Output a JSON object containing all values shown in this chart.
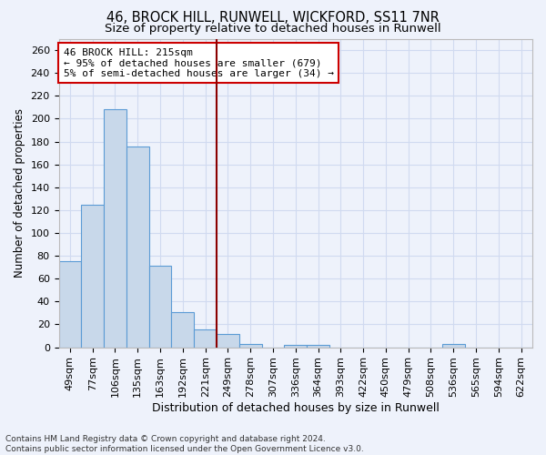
{
  "title1": "46, BROCK HILL, RUNWELL, WICKFORD, SS11 7NR",
  "title2": "Size of property relative to detached houses in Runwell",
  "xlabel": "Distribution of detached houses by size in Runwell",
  "ylabel": "Number of detached properties",
  "categories": [
    "49sqm",
    "77sqm",
    "106sqm",
    "135sqm",
    "163sqm",
    "192sqm",
    "221sqm",
    "249sqm",
    "278sqm",
    "307sqm",
    "336sqm",
    "364sqm",
    "393sqm",
    "422sqm",
    "450sqm",
    "479sqm",
    "508sqm",
    "536sqm",
    "565sqm",
    "594sqm",
    "622sqm"
  ],
  "values": [
    75,
    125,
    208,
    176,
    71,
    31,
    16,
    12,
    3,
    0,
    2,
    2,
    0,
    0,
    0,
    0,
    0,
    3,
    0,
    0,
    0
  ],
  "bar_color": "#c8d8ea",
  "bar_edge_color": "#5b9bd5",
  "vline_x_idx": 6,
  "vline_color": "#8b0000",
  "annotation_line1": "46 BROCK HILL: 215sqm",
  "annotation_line2": "← 95% of detached houses are smaller (679)",
  "annotation_line3": "5% of semi-detached houses are larger (34) →",
  "box_edge_color": "#cc0000",
  "ylim": [
    0,
    270
  ],
  "yticks": [
    0,
    20,
    40,
    60,
    80,
    100,
    120,
    140,
    160,
    180,
    200,
    220,
    240,
    260
  ],
  "background_color": "#eef2fb",
  "grid_color": "#d0daf0",
  "footnote": "Contains HM Land Registry data © Crown copyright and database right 2024.\nContains public sector information licensed under the Open Government Licence v3.0.",
  "title1_fontsize": 10.5,
  "title2_fontsize": 9.5,
  "xlabel_fontsize": 9,
  "ylabel_fontsize": 8.5,
  "tick_fontsize": 8,
  "annot_fontsize": 8,
  "footnote_fontsize": 6.5
}
